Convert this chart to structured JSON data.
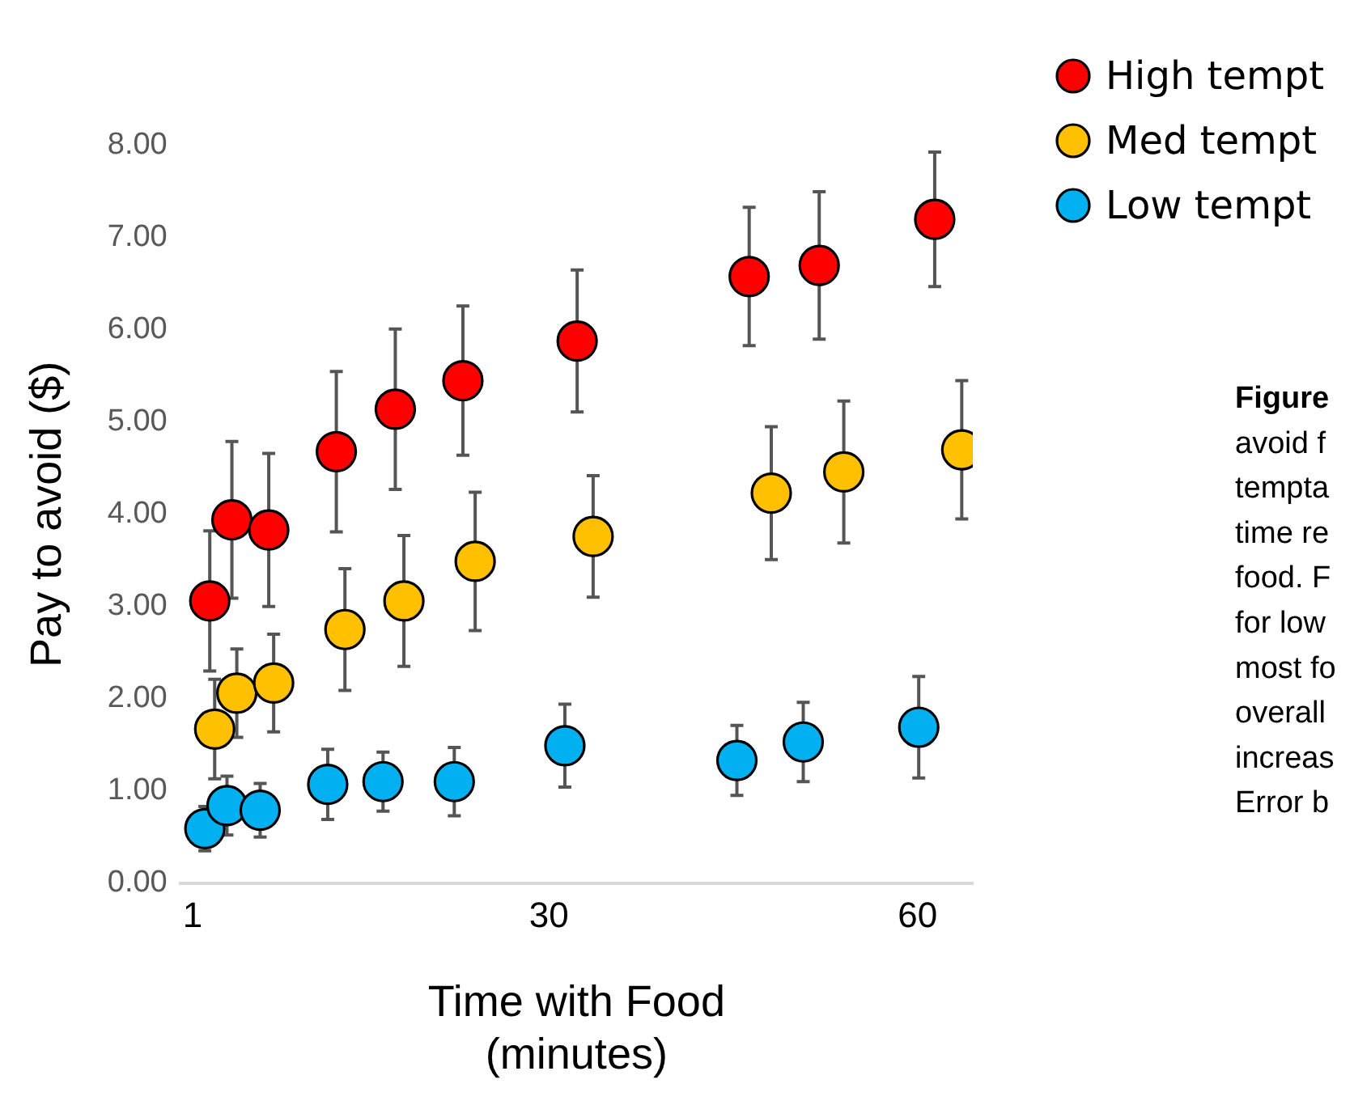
{
  "chart_data": {
    "type": "scatter",
    "xlabel": "Time with Food\n(minutes)",
    "ylabel": "Pay to avoid ($)",
    "xlim": [
      0,
      64.5
    ],
    "xticks": [
      1,
      30,
      60
    ],
    "ylim": [
      0,
      8
    ],
    "yticks": [
      {
        "value": 0,
        "label": "0.00"
      },
      {
        "value": 1,
        "label": "1.00"
      },
      {
        "value": 2,
        "label": "2.00"
      },
      {
        "value": 3,
        "label": "3.00"
      },
      {
        "value": 4,
        "label": "4.00"
      },
      {
        "value": 5,
        "label": "5.00"
      },
      {
        "value": 6,
        "label": "6.00"
      },
      {
        "value": 7,
        "label": "7.00"
      },
      {
        "value": 8,
        "label": "8.00"
      }
    ],
    "grid": false,
    "legend": "top right",
    "marker": "circle",
    "series": [
      {
        "name": "High tempt",
        "color": "#ff0000",
        "x": [
          2.4,
          4.2,
          7.2,
          12.7,
          17.5,
          23.0,
          32.3,
          46.3,
          52.0,
          61.4
        ],
        "values": [
          3.06,
          3.94,
          3.83,
          4.68,
          5.14,
          5.45,
          5.88,
          6.58,
          6.7,
          7.2
        ],
        "errors": [
          0.76,
          0.85,
          0.83,
          0.87,
          0.87,
          0.81,
          0.77,
          0.75,
          0.8,
          0.73
        ]
      },
      {
        "name": "Med tempt",
        "color": "#ffc000",
        "x": [
          2.8,
          4.6,
          7.6,
          13.4,
          18.2,
          24.0,
          33.6,
          48.1,
          54.0,
          63.6
        ],
        "values": [
          1.67,
          2.06,
          2.17,
          2.75,
          3.06,
          3.49,
          3.76,
          4.23,
          4.46,
          4.7
        ],
        "errors": [
          0.54,
          0.48,
          0.53,
          0.66,
          0.71,
          0.75,
          0.66,
          0.72,
          0.77,
          0.75
        ]
      },
      {
        "name": "Low tempt",
        "color": "#00b0f0",
        "x": [
          2.0,
          3.8,
          6.5,
          12.0,
          16.5,
          22.3,
          31.3,
          45.3,
          50.7,
          60.1
        ],
        "values": [
          0.59,
          0.84,
          0.79,
          1.07,
          1.1,
          1.1,
          1.49,
          1.33,
          1.53,
          1.69
        ],
        "errors": [
          0.24,
          0.32,
          0.29,
          0.38,
          0.32,
          0.37,
          0.45,
          0.38,
          0.43,
          0.55
        ]
      }
    ],
    "annotations": [
      "Figure",
      "avoid f",
      "tempta",
      "time re",
      "food. F",
      "for low",
      "most fo",
      "overall",
      "increas",
      "Error b"
    ]
  }
}
